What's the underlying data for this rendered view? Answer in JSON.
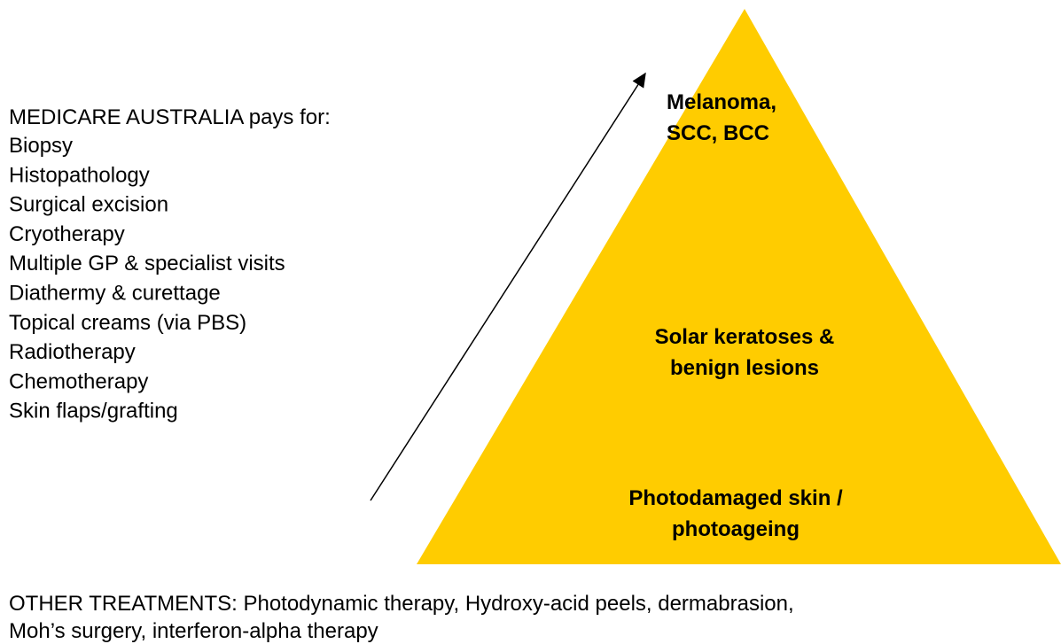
{
  "left_list": {
    "heading": "MEDICARE AUSTRALIA pays for:",
    "items": [
      "Biopsy",
      "Histopathology",
      "Surgical excision",
      "Cryotherapy",
      "Multiple GP & specialist visits",
      "Diathermy & curettage",
      "Topical creams (via PBS)",
      "Radiotherapy",
      "Chemotherapy",
      "Skin flaps/grafting"
    ]
  },
  "pyramid": {
    "levels": [
      [
        "Melanoma,",
        "SCC, BCC"
      ],
      [
        "Solar keratoses &",
        "benign lesions"
      ],
      [
        "Photodamaged skin /",
        "photoageing"
      ]
    ]
  },
  "footer": [
    "OTHER TREATMENTS: Photodynamic therapy, Hydroxy-acid peels, dermabrasion,",
    "Moh’s surgery, interferon-alpha therapy"
  ]
}
